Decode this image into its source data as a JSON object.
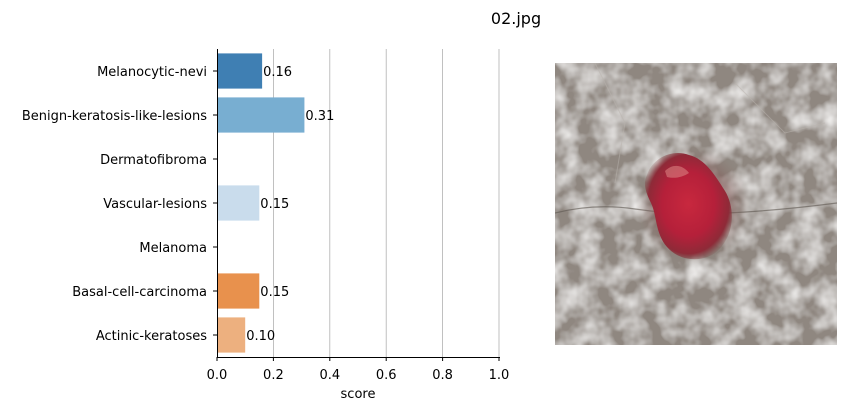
{
  "figure": {
    "title": "02.jpg"
  },
  "chart_data": {
    "type": "bar",
    "orientation": "horizontal",
    "categories": [
      "Melanocytic-nevi",
      "Benign-keratosis-like-lesions",
      "Dermatofibroma",
      "Vascular-lesions",
      "Melanoma",
      "Basal-cell-carcinoma",
      "Actinic-keratoses"
    ],
    "values": [
      0.16,
      0.31,
      0.0,
      0.15,
      0.0,
      0.15,
      0.1
    ],
    "value_labels": [
      "0.16",
      "0.31",
      "",
      "0.15",
      "",
      "0.15",
      "0.10"
    ],
    "bar_colors": [
      "#3f7fb3",
      "#78aed1",
      "#ffffff",
      "#c9dcec",
      "#ffffff",
      "#e8914d",
      "#edb07f"
    ],
    "xlabel": "score",
    "xlim": [
      0,
      1.0
    ],
    "x_ticks": [
      "0.0",
      "0.2",
      "0.4",
      "0.6",
      "0.8",
      "1.0"
    ],
    "x_tick_values": [
      0.0,
      0.2,
      0.4,
      0.6,
      0.8,
      1.0
    ],
    "grid": "vertical"
  },
  "image_panel": {
    "content": "skin lesion photograph"
  }
}
